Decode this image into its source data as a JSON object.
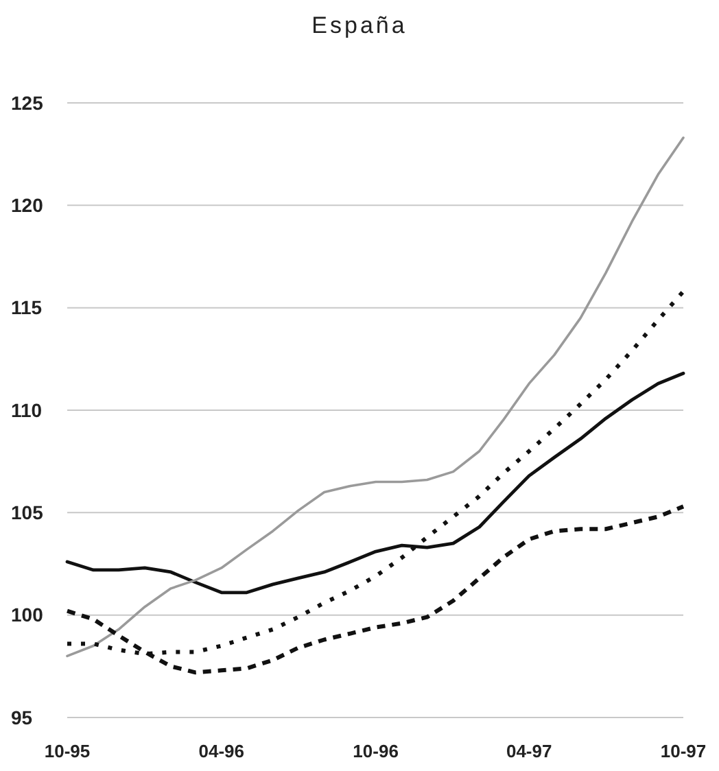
{
  "chart_data": {
    "type": "line",
    "title": "España",
    "x": [
      "1995-10",
      "1995-11",
      "1995-12",
      "1996-01",
      "1996-02",
      "1996-03",
      "1996-04",
      "1996-05",
      "1996-06",
      "1996-07",
      "1996-08",
      "1996-09",
      "1996-10",
      "1996-11",
      "1996-12",
      "1997-01",
      "1997-02",
      "1997-03",
      "1997-04",
      "1997-05",
      "1997-06",
      "1997-07",
      "1997-08",
      "1997-09",
      "1997-10"
    ],
    "series": [
      {
        "color": "#111111",
        "line_style": "solid",
        "values": [
          102.6,
          102.2,
          102.2,
          102.3,
          102.1,
          101.6,
          101.1,
          101.1,
          101.5,
          101.8,
          102.1,
          102.6,
          103.1,
          103.4,
          103.3,
          103.5,
          104.3,
          105.5,
          106.8,
          107.7,
          108.6,
          109.6,
          110.5,
          111.3,
          111.8
        ]
      },
      {
        "color": "#9a9a9a",
        "line_style": "solid",
        "values": [
          98.0,
          98.5,
          99.3,
          100.4,
          101.3,
          101.7,
          102.3,
          103.2,
          104.1,
          105.1,
          106.0,
          106.3,
          106.5,
          106.5,
          106.6,
          107.0,
          108.0,
          109.5,
          111.3,
          112.7,
          114.5,
          116.7,
          119.2,
          121.5,
          123.3
        ]
      },
      {
        "color": "#111111",
        "line_style": "dotted",
        "values": [
          98.6,
          98.6,
          98.3,
          98.1,
          98.2,
          98.2,
          98.5,
          98.9,
          99.3,
          99.9,
          100.6,
          101.2,
          101.9,
          102.8,
          103.8,
          104.8,
          105.8,
          106.9,
          108.0,
          109.1,
          110.3,
          111.5,
          112.9,
          114.4,
          115.8
        ]
      },
      {
        "color": "#111111",
        "line_style": "dashed",
        "values": [
          100.2,
          99.8,
          99.0,
          98.2,
          97.5,
          97.2,
          97.3,
          97.4,
          97.8,
          98.4,
          98.8,
          99.1,
          99.4,
          99.6,
          99.9,
          100.7,
          101.8,
          102.8,
          103.7,
          104.1,
          104.2,
          104.2,
          104.5,
          104.8,
          105.3
        ]
      }
    ],
    "xlim": [
      "1995-10",
      "1997-10"
    ],
    "xticks": [
      {
        "value": "1995-10",
        "label": "10-95"
      },
      {
        "value": "1996-04",
        "label": "04-96"
      },
      {
        "value": "1996-10",
        "label": "10-96"
      },
      {
        "value": "1997-04",
        "label": "04-97"
      },
      {
        "value": "1997-10",
        "label": "10-97"
      }
    ],
    "ylim": [
      95,
      125
    ],
    "yticks": [
      95,
      100,
      105,
      110,
      115,
      120,
      125
    ],
    "grid": "y",
    "marker": "none"
  }
}
